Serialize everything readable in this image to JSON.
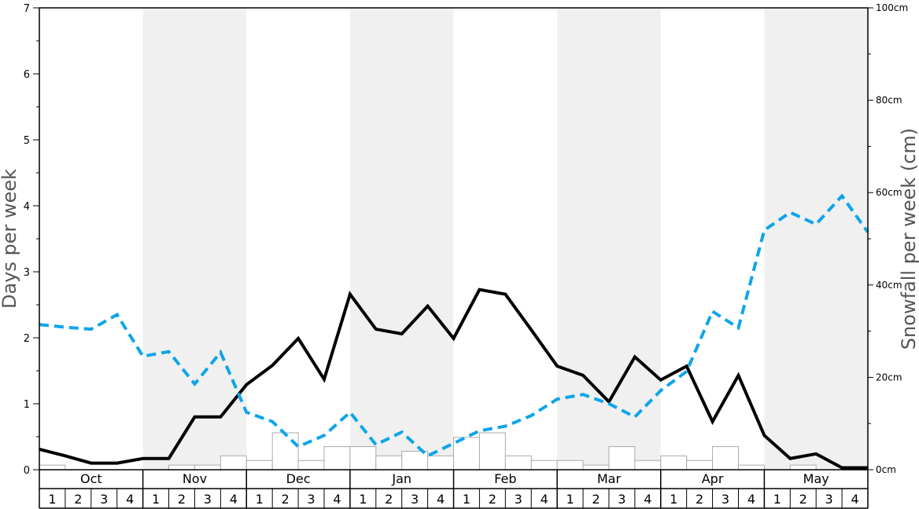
{
  "chart_data": {
    "type": "line",
    "title": "",
    "ylabel_left": "Days per week",
    "ylabel_right": "Snowfall per week (cm)",
    "ylim_left": [
      0,
      7
    ],
    "ylim_right": [
      0,
      100
    ],
    "left_ticks": [
      "0",
      "1",
      "2",
      "3",
      "4",
      "5",
      "6",
      "7"
    ],
    "right_ticks": [
      "0cm",
      "20cm",
      "40cm",
      "60cm",
      "80cm",
      "100cm"
    ],
    "months": [
      "Oct",
      "Nov",
      "Dec",
      "Jan",
      "Feb",
      "Mar",
      "Apr",
      "May"
    ],
    "weeks": [
      "1",
      "2",
      "3",
      "4"
    ],
    "shaded_months": [
      "Nov",
      "Jan",
      "Mar",
      "May"
    ],
    "colors": {
      "black_series": "#000000",
      "blue_series": "#0ea5e9",
      "bar_edge": "#aaaaaa",
      "shade": "#f0f0f0"
    },
    "series": [
      {
        "style": "solid-black",
        "values": [
          0.31,
          0.21,
          0.1,
          0.1,
          0.17,
          0.17,
          0.8,
          0.8,
          1.29,
          1.58,
          1.99,
          1.37,
          2.66,
          2.13,
          2.06,
          2.48,
          1.99,
          2.73,
          2.66,
          2.12,
          1.57,
          1.43,
          1.03,
          1.71,
          1.36,
          1.57,
          0.73,
          1.43,
          0.52,
          0.17,
          0.24,
          0.03,
          0.03
        ]
      },
      {
        "style": "dashed-blue",
        "values": [
          2.2,
          2.16,
          2.13,
          2.35,
          1.72,
          1.79,
          1.3,
          1.78,
          0.87,
          0.73,
          0.35,
          0.52,
          0.87,
          0.38,
          0.57,
          0.21,
          0.4,
          0.59,
          0.66,
          0.82,
          1.07,
          1.14,
          1.0,
          0.8,
          1.2,
          1.49,
          2.4,
          2.15,
          3.63,
          3.9,
          3.72,
          4.15,
          3.6
        ]
      }
    ],
    "snowfall_bars_cm": [
      1,
      0,
      0,
      0,
      0,
      1,
      1,
      3,
      2,
      8,
      2,
      5,
      5,
      3,
      4,
      3,
      7,
      8,
      3,
      2,
      2,
      1,
      5,
      2,
      3,
      2,
      5,
      1,
      0,
      1,
      0,
      0
    ]
  }
}
